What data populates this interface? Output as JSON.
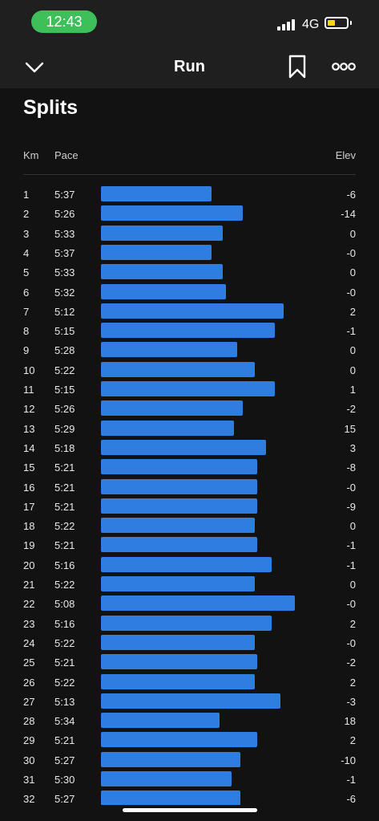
{
  "status": {
    "time": "12:43",
    "network": "4G",
    "battery_color": "#ffd60a",
    "time_pill_color": "#3fbf5a"
  },
  "nav": {
    "title": "Run",
    "back_icon": "chevron-down-icon",
    "bookmark_icon": "bookmark-icon",
    "more_icon": "more-dots-icon"
  },
  "splits": {
    "title": "Splits",
    "headers": {
      "km": "Km",
      "pace": "Pace",
      "elev": "Elev"
    },
    "bar_color": "#2f7de1",
    "rows": [
      {
        "km": "1",
        "pace": "5:37",
        "elev": "-6"
      },
      {
        "km": "2",
        "pace": "5:26",
        "elev": "-14"
      },
      {
        "km": "3",
        "pace": "5:33",
        "elev": "0"
      },
      {
        "km": "4",
        "pace": "5:37",
        "elev": "-0"
      },
      {
        "km": "5",
        "pace": "5:33",
        "elev": "0"
      },
      {
        "km": "6",
        "pace": "5:32",
        "elev": "-0"
      },
      {
        "km": "7",
        "pace": "5:12",
        "elev": "2"
      },
      {
        "km": "8",
        "pace": "5:15",
        "elev": "-1"
      },
      {
        "km": "9",
        "pace": "5:28",
        "elev": "0"
      },
      {
        "km": "10",
        "pace": "5:22",
        "elev": "0"
      },
      {
        "km": "11",
        "pace": "5:15",
        "elev": "1"
      },
      {
        "km": "12",
        "pace": "5:26",
        "elev": "-2"
      },
      {
        "km": "13",
        "pace": "5:29",
        "elev": "15"
      },
      {
        "km": "14",
        "pace": "5:18",
        "elev": "3"
      },
      {
        "km": "15",
        "pace": "5:21",
        "elev": "-8"
      },
      {
        "km": "16",
        "pace": "5:21",
        "elev": "-0"
      },
      {
        "km": "17",
        "pace": "5:21",
        "elev": "-9"
      },
      {
        "km": "18",
        "pace": "5:22",
        "elev": "0"
      },
      {
        "km": "19",
        "pace": "5:21",
        "elev": "-1"
      },
      {
        "km": "20",
        "pace": "5:16",
        "elev": "-1"
      },
      {
        "km": "21",
        "pace": "5:22",
        "elev": "0"
      },
      {
        "km": "22",
        "pace": "5:08",
        "elev": "-0"
      },
      {
        "km": "23",
        "pace": "5:16",
        "elev": "2"
      },
      {
        "km": "24",
        "pace": "5:22",
        "elev": "-0"
      },
      {
        "km": "25",
        "pace": "5:21",
        "elev": "-2"
      },
      {
        "km": "26",
        "pace": "5:22",
        "elev": "2"
      },
      {
        "km": "27",
        "pace": "5:13",
        "elev": "-3"
      },
      {
        "km": "28",
        "pace": "5:34",
        "elev": "18"
      },
      {
        "km": "29",
        "pace": "5:21",
        "elev": "2"
      },
      {
        "km": "30",
        "pace": "5:27",
        "elev": "-10"
      },
      {
        "km": "31",
        "pace": "5:30",
        "elev": "-1"
      },
      {
        "km": "32",
        "pace": "5:27",
        "elev": "-6"
      }
    ]
  }
}
